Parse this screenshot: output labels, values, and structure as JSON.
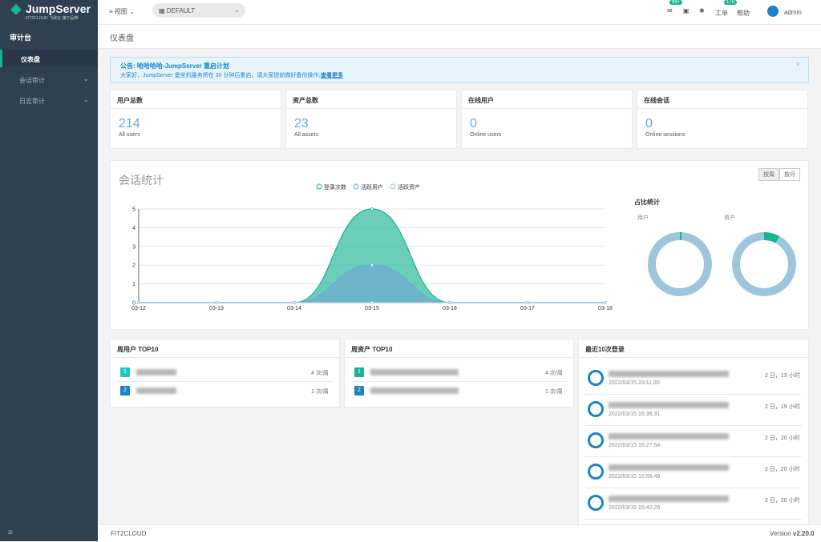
{
  "sidebar": {
    "logo": "JumpServer",
    "logo_sub": "FIT2CLOUD 飞致云 旗下品牌",
    "section": "审计台",
    "menu": [
      "仪表盘",
      "会话审计",
      "日志审计"
    ]
  },
  "header": {
    "view": "视图",
    "org": "DEFAULT",
    "badges": [
      "99+",
      "175"
    ],
    "ticket": "工单",
    "help": "帮助",
    "user": "admin"
  },
  "page_title": "仪表盘",
  "announcement": {
    "title": "公告: 哈哈哈哈-JumpServer 重启计划",
    "text": "大家好，JumpServer 堡垒机服务将在 30 分钟后重启，请大家提前做好备份操作。",
    "link": "查看更多"
  },
  "stats": [
    {
      "title": "用户总数",
      "value": 214,
      "label": "All users"
    },
    {
      "title": "资产总数",
      "value": 23,
      "label": "All assets"
    },
    {
      "title": "在线用户",
      "value": 0,
      "label": "Online users"
    },
    {
      "title": "在线会话",
      "value": 0,
      "label": "Online sessions"
    }
  ],
  "session_chart": {
    "type": "area",
    "title": "会话统计",
    "toggles": [
      "按周",
      "按月"
    ],
    "categories": [
      "03-12",
      "03-13",
      "03-14",
      "03-15",
      "03-16",
      "03-17",
      "03-18"
    ],
    "series": [
      {
        "name": "登录次数",
        "color": "#1ab394",
        "values": [
          0,
          0,
          0,
          5,
          0,
          0,
          0
        ]
      },
      {
        "name": "活跃用户",
        "color": "#6fa8d6",
        "values": [
          0,
          0,
          0,
          2,
          0,
          0,
          0
        ]
      },
      {
        "name": "活跃资产",
        "color": "#9ec5dc",
        "values": [
          0,
          0,
          0,
          0,
          0,
          0,
          0
        ]
      }
    ],
    "ylim": [
      0,
      5
    ],
    "yticks": [
      0,
      1,
      2,
      3,
      4,
      5
    ]
  },
  "ratio": {
    "title": "占比统计",
    "pies": [
      {
        "label": "用户",
        "values": [
          1,
          99
        ],
        "colors": [
          "#1ab394",
          "#9ec5dc"
        ]
      },
      {
        "label": "资产",
        "values": [
          8,
          92
        ],
        "colors": [
          "#1ab394",
          "#9ec5dc"
        ]
      }
    ]
  },
  "top_users": {
    "title": "周用户 TOP10",
    "rows": [
      {
        "rank": 1,
        "count": "4 次/周"
      },
      {
        "rank": 2,
        "count": "1 次/周"
      }
    ]
  },
  "top_assets": {
    "title": "周资产 TOP10",
    "rows": [
      {
        "rank": 1,
        "count": "4 次/周"
      },
      {
        "rank": 2,
        "count": "1 次/周"
      }
    ]
  },
  "recent": {
    "title": "最近10次登录",
    "rows": [
      {
        "time": "2022/03/15 23:11:30",
        "duration": "2 日，13 小时"
      },
      {
        "time": "2022/03/15 16:36:31",
        "duration": "2 日，19 小时"
      },
      {
        "time": "2022/03/15 16:27:54",
        "duration": "2 日，20 小时"
      },
      {
        "time": "2022/03/15 15:55:48",
        "duration": "2 日，20 小时"
      },
      {
        "time": "2022/03/15 15:42:29",
        "duration": "2 日，20 小时"
      }
    ]
  },
  "footer": {
    "left": "FIT2CLOUD",
    "version_label": "Version",
    "version": "v2.20.0"
  }
}
